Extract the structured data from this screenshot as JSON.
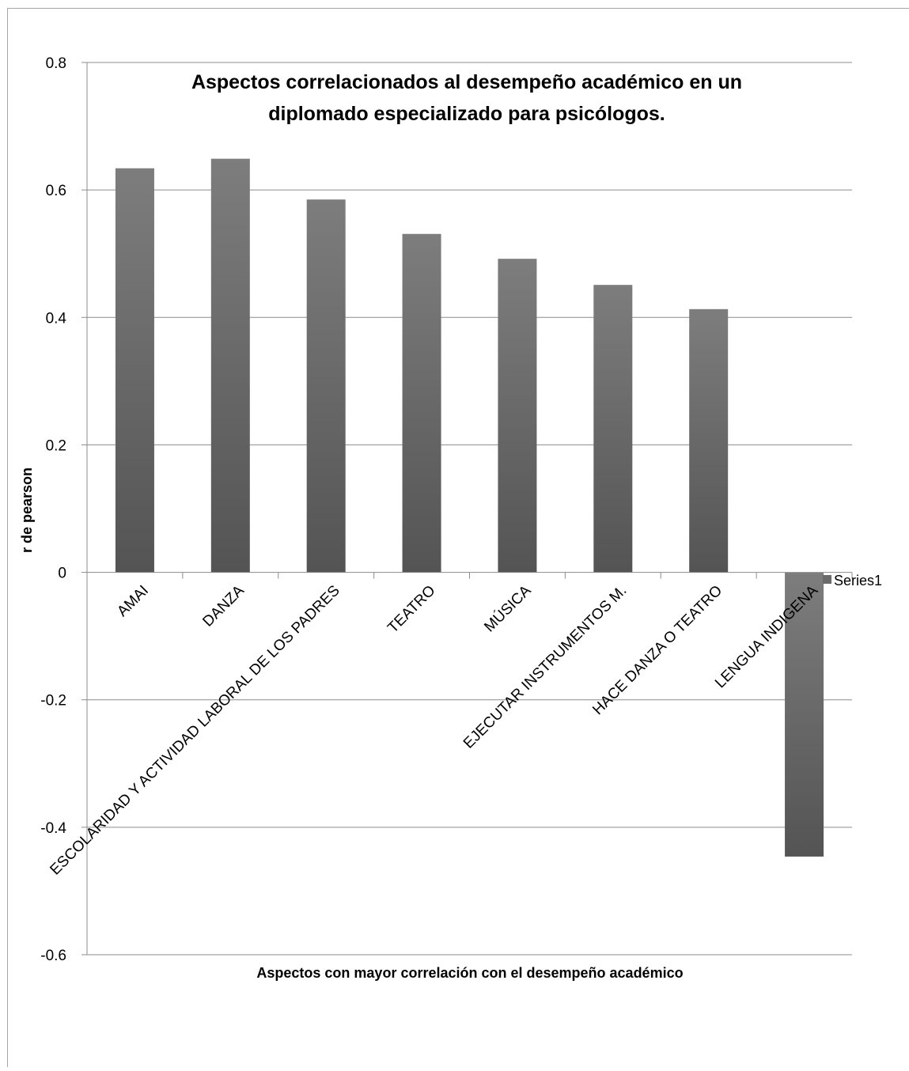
{
  "chart_data": {
    "type": "bar",
    "title": "Aspectos correlacionados al desempeño académico en un diplomado especializado para psicólogos.",
    "title_lines": [
      "Aspectos correlacionados al desempeño académico en un",
      "diplomado especializado para psicólogos."
    ],
    "xlabel": "Aspectos con mayor correlación con el desempeño académico",
    "ylabel": "r de pearson",
    "categories": [
      "AMAI",
      "DANZA",
      "ESCOLARIDAD Y ACTIVIDAD LABORAL DE LOS PADRES",
      "TEATRO",
      "MÚSICA",
      "EJECUTAR INSTRUMENTOS M.",
      "HACE DANZA O TEATRO",
      "LENGUA INDIGENA"
    ],
    "series": [
      {
        "name": "Series1",
        "values": [
          0.634,
          0.649,
          0.585,
          0.531,
          0.492,
          0.451,
          0.413,
          -0.446
        ]
      }
    ],
    "ylim": [
      -0.6,
      0.8
    ],
    "yticks": [
      "-0.6",
      "-0.4",
      "-0.2",
      "0",
      "0.2",
      "0.4",
      "0.6",
      "0.8"
    ],
    "ytick_values": [
      -0.6,
      -0.4,
      -0.2,
      0,
      0.2,
      0.4,
      0.6,
      0.8
    ],
    "grid": true,
    "legend_position": "right",
    "bar_color_top": "#7d7d7d",
    "bar_color_bottom": "#545454"
  }
}
